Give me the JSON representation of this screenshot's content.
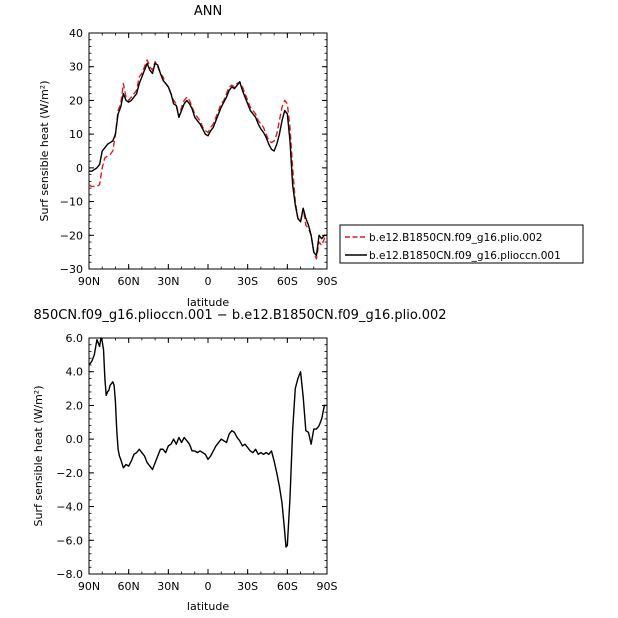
{
  "chart_data": [
    {
      "type": "line",
      "title": "ANN",
      "xlabel": "latitude",
      "ylabel": "Surf sensible heat (W/m²)",
      "ylim": [
        -30,
        40
      ],
      "xlim": [
        90,
        -90
      ],
      "x_ticks": [
        90,
        60,
        30,
        0,
        -30,
        -60,
        -90
      ],
      "x_tick_labels": [
        "90N",
        "60N",
        "30N",
        "0",
        "30S",
        "60S",
        "90S"
      ],
      "y_ticks": [
        -30,
        -20,
        -10,
        0,
        10,
        20,
        30,
        40
      ],
      "y_tick_labels": [
        "−30",
        "−20",
        "−10",
        "0",
        "10",
        "20",
        "30",
        "40"
      ],
      "legend_position": "right",
      "series": [
        {
          "name": "b.e12.B1850CN.f09_g16.plio.002",
          "color": "#e11b1b",
          "dash": "dashed",
          "x": [
            90,
            88,
            86,
            84,
            82,
            80,
            78,
            76,
            74,
            72,
            70,
            68,
            66,
            64,
            62,
            60,
            58,
            56,
            54,
            52,
            50,
            48,
            46,
            44,
            42,
            40,
            38,
            36,
            34,
            32,
            30,
            28,
            26,
            24,
            22,
            20,
            18,
            16,
            14,
            12,
            10,
            8,
            6,
            4,
            2,
            0,
            -2,
            -4,
            -6,
            -8,
            -10,
            -12,
            -14,
            -16,
            -18,
            -20,
            -22,
            -24,
            -26,
            -28,
            -30,
            -32,
            -34,
            -36,
            -38,
            -40,
            -42,
            -44,
            -46,
            -48,
            -50,
            -52,
            -54,
            -56,
            -58,
            -60,
            -62,
            -64,
            -66,
            -68,
            -70,
            -72,
            -74,
            -76,
            -78,
            -80,
            -82,
            -84,
            -86,
            -88,
            -90
          ],
          "y": [
            -5,
            -5.5,
            -5.5,
            -5.5,
            -5,
            0,
            3,
            3.5,
            4,
            5,
            10,
            17,
            19,
            25,
            21,
            20,
            21,
            22,
            23,
            27,
            28,
            30,
            32,
            30,
            29,
            31.5,
            30,
            28,
            27,
            25,
            24,
            22,
            20,
            19,
            15,
            18,
            20,
            21,
            20,
            18,
            16,
            15,
            14,
            12,
            11,
            10.5,
            12,
            13,
            15,
            17,
            19,
            20,
            22,
            24,
            24.5,
            24,
            25,
            25.5,
            24,
            22,
            20,
            18,
            17,
            16,
            14,
            13,
            12,
            10,
            8,
            7.5,
            8,
            10,
            14,
            18,
            20,
            19,
            12,
            0,
            -10,
            -15,
            -16,
            -12,
            -17,
            -18,
            -20,
            -25,
            -27,
            -22,
            -23,
            -21,
            -20
          ]
        },
        {
          "name": "b.e12.B1850CN.f09_g16.plioccn.001",
          "color": "#000000",
          "dash": "solid",
          "x": [
            90,
            88,
            86,
            84,
            82,
            80,
            78,
            76,
            74,
            72,
            70,
            68,
            66,
            64,
            62,
            60,
            58,
            56,
            54,
            52,
            50,
            48,
            46,
            44,
            42,
            40,
            38,
            36,
            34,
            32,
            30,
            28,
            26,
            24,
            22,
            20,
            18,
            16,
            14,
            12,
            10,
            8,
            6,
            4,
            2,
            0,
            -2,
            -4,
            -6,
            -8,
            -10,
            -12,
            -14,
            -16,
            -18,
            -20,
            -22,
            -24,
            -26,
            -28,
            -30,
            -32,
            -34,
            -36,
            -38,
            -40,
            -42,
            -44,
            -46,
            -48,
            -50,
            -52,
            -54,
            -56,
            -58,
            -60,
            -62,
            -64,
            -66,
            -68,
            -70,
            -72,
            -74,
            -76,
            -78,
            -80,
            -82,
            -84,
            -86,
            -88,
            -90
          ],
          "y": [
            -1,
            -1,
            -0.5,
            0,
            1,
            5,
            6,
            7,
            7.5,
            8,
            10,
            16,
            18,
            22,
            20,
            19.5,
            20,
            21,
            22,
            25,
            27,
            29,
            31,
            29,
            28,
            31,
            30.5,
            28,
            26,
            25,
            24,
            22,
            19,
            18.5,
            15,
            17,
            19,
            20,
            19,
            17.5,
            15,
            14,
            13,
            11.5,
            10,
            9.5,
            11,
            12,
            14,
            16,
            18,
            19.5,
            21,
            23,
            24,
            23.5,
            24.5,
            25.5,
            23,
            21,
            19,
            17,
            16,
            15,
            13,
            11.5,
            10.5,
            9,
            7,
            5.5,
            5,
            7,
            10,
            14,
            17,
            16,
            8,
            -5,
            -11,
            -15,
            -16,
            -12,
            -15,
            -17,
            -20,
            -25,
            -26,
            -20,
            -21,
            -20,
            -20
          ]
        }
      ]
    },
    {
      "type": "line",
      "title": "850CN.f09_g16.plioccn.001 − b.e12.B1850CN.f09_g16.plio.002",
      "xlabel": "latitude",
      "ylabel": "Surf sensible heat (W/m²)",
      "ylim": [
        -8,
        6
      ],
      "xlim": [
        90,
        -90
      ],
      "x_ticks": [
        90,
        60,
        30,
        0,
        -30,
        -60,
        -90
      ],
      "x_tick_labels": [
        "90N",
        "60N",
        "30N",
        "0",
        "30S",
        "60S",
        "90S"
      ],
      "y_ticks": [
        -8,
        -6,
        -4,
        -2,
        0,
        2,
        4,
        6
      ],
      "y_tick_labels": [
        "−8.0",
        "−6.0",
        "−4.0",
        "−2.0",
        "0.0",
        "2.0",
        "4.0",
        "6.0"
      ],
      "series": [
        {
          "color": "#000000",
          "dash": "solid",
          "x": [
            90,
            88,
            86,
            84,
            83,
            82,
            81,
            80,
            79,
            78,
            77,
            76,
            75,
            74,
            73,
            72,
            71,
            70,
            69,
            68,
            67,
            66,
            64,
            62,
            60,
            58,
            56,
            54,
            52,
            50,
            48,
            46,
            44,
            42,
            40,
            38,
            36,
            34,
            32,
            30,
            28,
            26,
            24,
            22,
            20,
            18,
            16,
            14,
            12,
            10,
            8,
            6,
            4,
            2,
            0,
            -2,
            -4,
            -6,
            -8,
            -10,
            -12,
            -14,
            -16,
            -18,
            -20,
            -22,
            -24,
            -26,
            -28,
            -30,
            -32,
            -34,
            -36,
            -38,
            -40,
            -42,
            -44,
            -46,
            -48,
            -50,
            -52,
            -54,
            -56,
            -58,
            -59,
            -60,
            -62,
            -64,
            -66,
            -68,
            -70,
            -72,
            -74,
            -76,
            -78,
            -80,
            -82,
            -84,
            -86,
            -88,
            -90
          ],
          "y": [
            4.4,
            4.6,
            5.0,
            5.9,
            5.7,
            5.5,
            6.0,
            5.8,
            5.3,
            3.6,
            2.6,
            2.8,
            2.9,
            3.2,
            3.3,
            3.4,
            3.2,
            2.2,
            0.5,
            -0.6,
            -1.0,
            -1.2,
            -1.7,
            -1.5,
            -1.6,
            -1.3,
            -0.9,
            -0.8,
            -0.6,
            -0.8,
            -1.0,
            -1.4,
            -1.6,
            -1.8,
            -1.4,
            -1.0,
            -0.6,
            -0.6,
            -0.8,
            -0.4,
            -0.3,
            0.0,
            -0.3,
            0.1,
            -0.2,
            0.1,
            -0.1,
            -0.3,
            -0.7,
            -0.7,
            -0.8,
            -0.7,
            -0.8,
            -0.9,
            -1.2,
            -1.0,
            -0.7,
            -0.4,
            -0.2,
            0.0,
            -0.1,
            -0.2,
            0.3,
            0.5,
            0.4,
            0.1,
            -0.1,
            -0.4,
            -0.3,
            -0.5,
            -0.7,
            -0.8,
            -0.6,
            -0.9,
            -0.8,
            -0.9,
            -0.8,
            -0.9,
            -0.7,
            -1.3,
            -2.0,
            -2.8,
            -3.8,
            -5.5,
            -6.4,
            -6.3,
            -3.5,
            0.5,
            3.0,
            3.6,
            4.0,
            2.5,
            0.5,
            0.4,
            -0.3,
            0.6,
            0.6,
            0.8,
            1.2,
            2.0,
            2.0
          ]
        }
      ]
    }
  ]
}
